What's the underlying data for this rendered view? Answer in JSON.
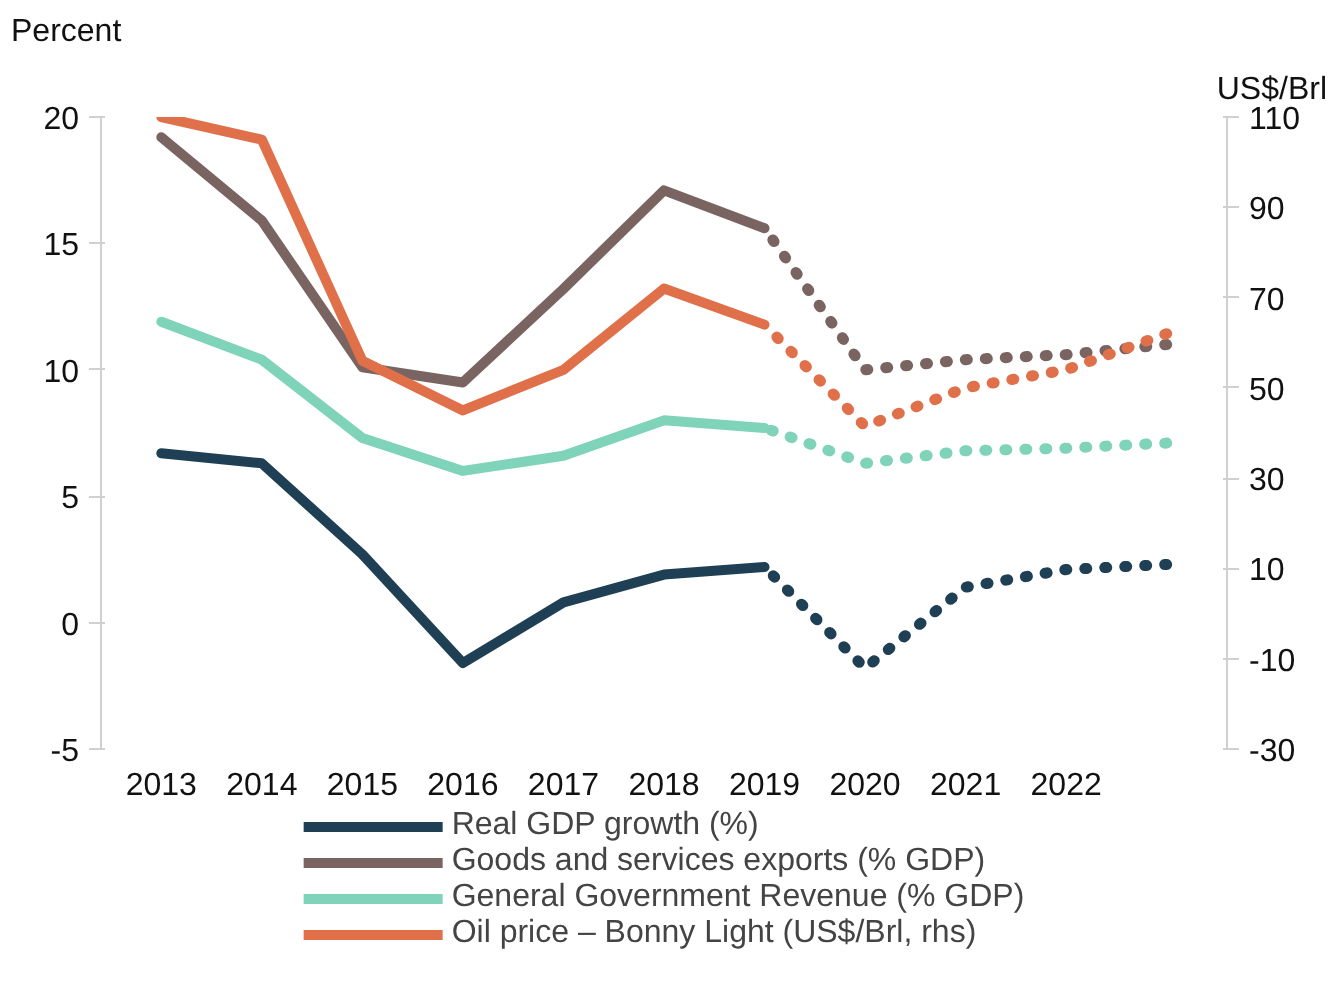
{
  "chart_data": {
    "type": "line",
    "ylabel": "Percent",
    "y2label": "US$/Brl",
    "categories": [
      "2013",
      "2014",
      "2015",
      "2016",
      "2017",
      "2018",
      "2019",
      "2020",
      "2021",
      "2022",
      null
    ],
    "ylim": [
      -5,
      20
    ],
    "yticks": [
      -5,
      0,
      5,
      10,
      15,
      20
    ],
    "y2lim": [
      -30,
      110
    ],
    "y2ticks": [
      -30,
      -10,
      10,
      30,
      50,
      70,
      90,
      110
    ],
    "grid": false,
    "legend": "bottom",
    "marker": "none",
    "series": [
      {
        "name": "Real GDP growth (%)",
        "color": "#1f3f55",
        "line_style": "solid",
        "values": [
          6.7,
          6.3,
          2.7,
          -1.6,
          0.8,
          1.9,
          2.2,
          null,
          null,
          null,
          null
        ]
      },
      {
        "name": "Goods and services exports (% GDP)",
        "color": "#7a6461",
        "line_style": "solid",
        "values": [
          19.2,
          15.9,
          10.1,
          9.5,
          13.2,
          17.1,
          15.6,
          null,
          null,
          null,
          null
        ]
      },
      {
        "name": "General Government Revenue (% GDP)",
        "color": "#7fd3b8",
        "line_style": "solid",
        "values": [
          11.9,
          10.4,
          7.3,
          6.0,
          6.6,
          8.0,
          7.7,
          null,
          null,
          null,
          null
        ]
      },
      {
        "name": "Oil price – Bonny Light (US$/Brl, rhs)",
        "color": "#e0704a",
        "line_style": "solid",
        "axis": "y2",
        "values": [
          110,
          105,
          56,
          45,
          54,
          72,
          64,
          null,
          null,
          null,
          null
        ]
      },
      {
        "color": "#1f3f55",
        "line_style": "dotted",
        "values": [
          null,
          null,
          null,
          null,
          null,
          null,
          2.2,
          -1.8,
          1.4,
          2.1,
          2.3
        ]
      },
      {
        "color": "#7a6461",
        "line_style": "dotted",
        "values": [
          null,
          null,
          null,
          null,
          null,
          null,
          15.6,
          10.0,
          10.4,
          10.6,
          11.0
        ]
      },
      {
        "color": "#7fd3b8",
        "line_style": "dotted",
        "values": [
          null,
          null,
          null,
          null,
          null,
          null,
          7.7,
          6.3,
          6.8,
          6.9,
          7.1
        ]
      },
      {
        "color": "#e0704a",
        "line_style": "dotted",
        "axis": "y2",
        "values": [
          null,
          null,
          null,
          null,
          null,
          null,
          64,
          41.5,
          50,
          54,
          62
        ]
      }
    ]
  }
}
